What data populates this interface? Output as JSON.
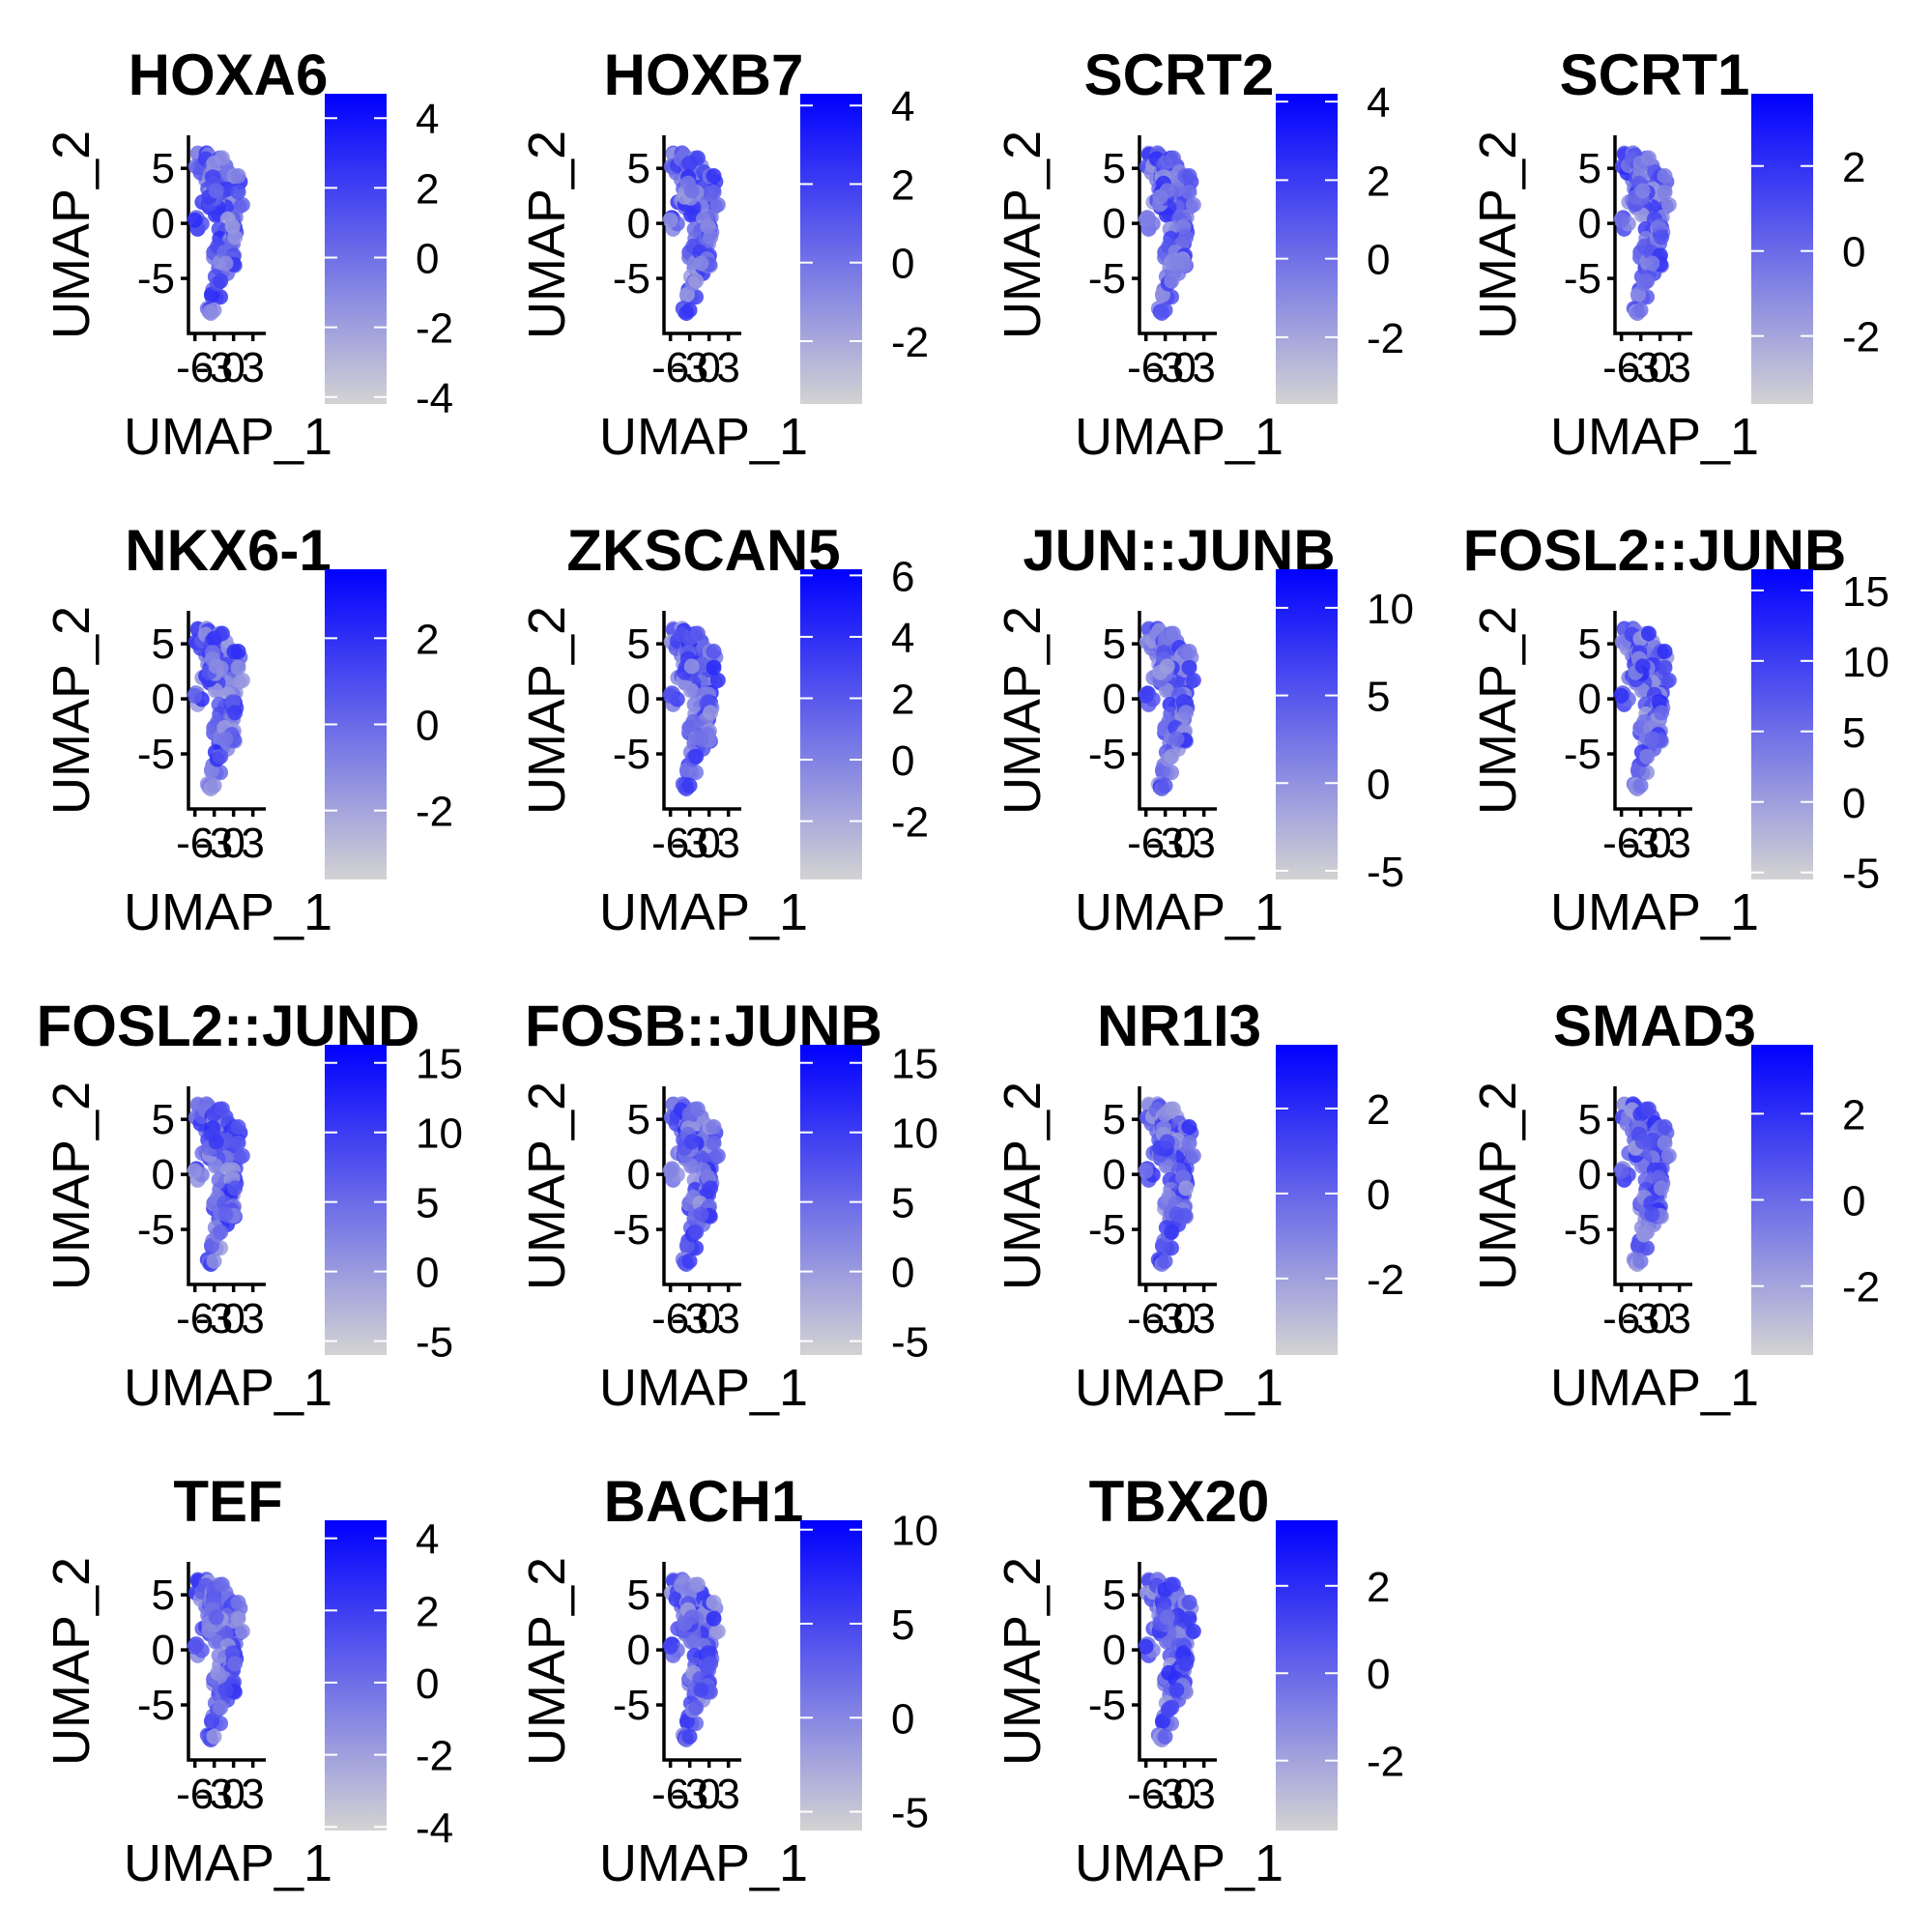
{
  "chart_data": {
    "type": "scatter",
    "layout_grid": {
      "rows": 4,
      "cols": 4
    },
    "shared": {
      "xlabel": "UMAP_1",
      "ylabel": "UMAP_2",
      "xticks": [
        "-6",
        "-3",
        "0",
        "3"
      ],
      "yticks": [
        "-5",
        "0",
        "5"
      ],
      "xlim": [
        -7,
        5
      ],
      "ylim": [
        -10,
        8
      ],
      "color_low": "#d3d3d3",
      "color_high": "#0000ff"
    },
    "panels": [
      {
        "title": "HOXA6",
        "color_min": -4.2,
        "color_max": 4.7,
        "color_ticks": [
          "4",
          "2",
          "0",
          "-2",
          "-4"
        ],
        "color_tick_values": [
          4,
          2,
          0,
          -2,
          -4
        ]
      },
      {
        "title": "HOXB7",
        "color_min": -3.6,
        "color_max": 4.3,
        "color_ticks": [
          "4",
          "2",
          "0",
          "-2"
        ],
        "color_tick_values": [
          4,
          2,
          0,
          -2
        ]
      },
      {
        "title": "SCRT2",
        "color_min": -3.7,
        "color_max": 4.2,
        "color_ticks": [
          "4",
          "2",
          "0",
          "-2"
        ],
        "color_tick_values": [
          4,
          2,
          0,
          -2
        ]
      },
      {
        "title": "SCRT1",
        "color_min": -3.6,
        "color_max": 3.7,
        "color_ticks": [
          "2",
          "0",
          "-2"
        ],
        "color_tick_values": [
          2,
          0,
          -2
        ]
      },
      {
        "title": "NKX6-1",
        "color_min": -3.6,
        "color_max": 3.6,
        "color_ticks": [
          "2",
          "0",
          "-2"
        ],
        "color_tick_values": [
          2,
          0,
          -2
        ]
      },
      {
        "title": "ZKSCAN5",
        "color_min": -3.9,
        "color_max": 6.2,
        "color_ticks": [
          "6",
          "4",
          "2",
          "0",
          "-2"
        ],
        "color_tick_values": [
          6,
          4,
          2,
          0,
          -2
        ]
      },
      {
        "title": "JUN::JUNB",
        "color_min": -5.5,
        "color_max": 12.2,
        "color_ticks": [
          "10",
          "5",
          "0",
          "-5"
        ],
        "color_tick_values": [
          10,
          5,
          0,
          -5
        ]
      },
      {
        "title": "FOSL2::JUNB",
        "color_min": -5.5,
        "color_max": 16.5,
        "color_ticks": [
          "15",
          "10",
          "5",
          "0",
          "-5"
        ],
        "color_tick_values": [
          15,
          10,
          5,
          0,
          -5
        ]
      },
      {
        "title": "FOSL2::JUND",
        "color_min": -6.0,
        "color_max": 16.3,
        "color_ticks": [
          "15",
          "10",
          "5",
          "0",
          "-5"
        ],
        "color_tick_values": [
          15,
          10,
          5,
          0,
          -5
        ]
      },
      {
        "title": "FOSB::JUNB",
        "color_min": -6.0,
        "color_max": 16.3,
        "color_ticks": [
          "15",
          "10",
          "5",
          "0",
          "-5"
        ],
        "color_tick_values": [
          15,
          10,
          5,
          0,
          -5
        ]
      },
      {
        "title": "NR1I3",
        "color_min": -3.8,
        "color_max": 3.5,
        "color_ticks": [
          "2",
          "0",
          "-2"
        ],
        "color_tick_values": [
          2,
          0,
          -2
        ]
      },
      {
        "title": "SMAD3",
        "color_min": -3.6,
        "color_max": 3.6,
        "color_ticks": [
          "2",
          "0",
          "-2"
        ],
        "color_tick_values": [
          2,
          0,
          -2
        ]
      },
      {
        "title": "TEF",
        "color_min": -4.1,
        "color_max": 4.5,
        "color_ticks": [
          "4",
          "2",
          "0",
          "-2",
          "-4"
        ],
        "color_tick_values": [
          4,
          2,
          0,
          -2,
          -4
        ]
      },
      {
        "title": "BACH1",
        "color_min": -6.0,
        "color_max": 10.5,
        "color_ticks": [
          "10",
          "5",
          "0",
          "-5"
        ],
        "color_tick_values": [
          10,
          5,
          0,
          -5
        ]
      },
      {
        "title": "TBX20",
        "color_min": -3.6,
        "color_max": 3.5,
        "color_ticks": [
          "2",
          "0",
          "-2"
        ],
        "color_tick_values": [
          2,
          0,
          -2
        ]
      }
    ]
  }
}
